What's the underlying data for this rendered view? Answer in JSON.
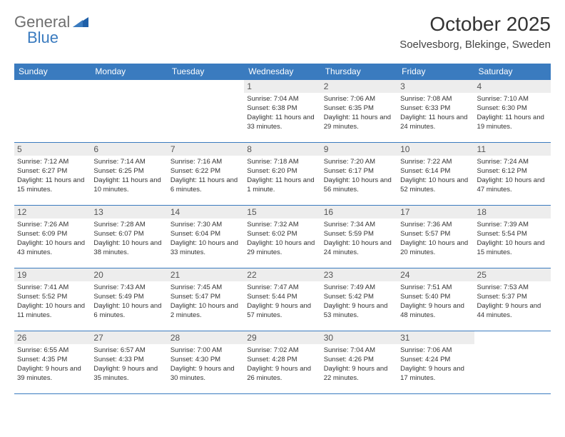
{
  "logo": {
    "part1": "General",
    "part2": "Blue"
  },
  "title": "October 2025",
  "location": "Soelvesborg, Blekinge, Sweden",
  "colors": {
    "header_bg": "#3a7bbf",
    "header_fg": "#ffffff",
    "daynum_bg": "#ededed",
    "border": "#3a7bbf",
    "logo_gray": "#6f6f6f",
    "logo_blue": "#3a7bbf"
  },
  "dayHeaders": [
    "Sunday",
    "Monday",
    "Tuesday",
    "Wednesday",
    "Thursday",
    "Friday",
    "Saturday"
  ],
  "firstWeekday": 3,
  "daysInMonth": 31,
  "days": {
    "1": {
      "sunrise": "7:04 AM",
      "sunset": "6:38 PM",
      "daylight": "11 hours and 33 minutes."
    },
    "2": {
      "sunrise": "7:06 AM",
      "sunset": "6:35 PM",
      "daylight": "11 hours and 29 minutes."
    },
    "3": {
      "sunrise": "7:08 AM",
      "sunset": "6:33 PM",
      "daylight": "11 hours and 24 minutes."
    },
    "4": {
      "sunrise": "7:10 AM",
      "sunset": "6:30 PM",
      "daylight": "11 hours and 19 minutes."
    },
    "5": {
      "sunrise": "7:12 AM",
      "sunset": "6:27 PM",
      "daylight": "11 hours and 15 minutes."
    },
    "6": {
      "sunrise": "7:14 AM",
      "sunset": "6:25 PM",
      "daylight": "11 hours and 10 minutes."
    },
    "7": {
      "sunrise": "7:16 AM",
      "sunset": "6:22 PM",
      "daylight": "11 hours and 6 minutes."
    },
    "8": {
      "sunrise": "7:18 AM",
      "sunset": "6:20 PM",
      "daylight": "11 hours and 1 minute."
    },
    "9": {
      "sunrise": "7:20 AM",
      "sunset": "6:17 PM",
      "daylight": "10 hours and 56 minutes."
    },
    "10": {
      "sunrise": "7:22 AM",
      "sunset": "6:14 PM",
      "daylight": "10 hours and 52 minutes."
    },
    "11": {
      "sunrise": "7:24 AM",
      "sunset": "6:12 PM",
      "daylight": "10 hours and 47 minutes."
    },
    "12": {
      "sunrise": "7:26 AM",
      "sunset": "6:09 PM",
      "daylight": "10 hours and 43 minutes."
    },
    "13": {
      "sunrise": "7:28 AM",
      "sunset": "6:07 PM",
      "daylight": "10 hours and 38 minutes."
    },
    "14": {
      "sunrise": "7:30 AM",
      "sunset": "6:04 PM",
      "daylight": "10 hours and 33 minutes."
    },
    "15": {
      "sunrise": "7:32 AM",
      "sunset": "6:02 PM",
      "daylight": "10 hours and 29 minutes."
    },
    "16": {
      "sunrise": "7:34 AM",
      "sunset": "5:59 PM",
      "daylight": "10 hours and 24 minutes."
    },
    "17": {
      "sunrise": "7:36 AM",
      "sunset": "5:57 PM",
      "daylight": "10 hours and 20 minutes."
    },
    "18": {
      "sunrise": "7:39 AM",
      "sunset": "5:54 PM",
      "daylight": "10 hours and 15 minutes."
    },
    "19": {
      "sunrise": "7:41 AM",
      "sunset": "5:52 PM",
      "daylight": "10 hours and 11 minutes."
    },
    "20": {
      "sunrise": "7:43 AM",
      "sunset": "5:49 PM",
      "daylight": "10 hours and 6 minutes."
    },
    "21": {
      "sunrise": "7:45 AM",
      "sunset": "5:47 PM",
      "daylight": "10 hours and 2 minutes."
    },
    "22": {
      "sunrise": "7:47 AM",
      "sunset": "5:44 PM",
      "daylight": "9 hours and 57 minutes."
    },
    "23": {
      "sunrise": "7:49 AM",
      "sunset": "5:42 PM",
      "daylight": "9 hours and 53 minutes."
    },
    "24": {
      "sunrise": "7:51 AM",
      "sunset": "5:40 PM",
      "daylight": "9 hours and 48 minutes."
    },
    "25": {
      "sunrise": "7:53 AM",
      "sunset": "5:37 PM",
      "daylight": "9 hours and 44 minutes."
    },
    "26": {
      "sunrise": "6:55 AM",
      "sunset": "4:35 PM",
      "daylight": "9 hours and 39 minutes."
    },
    "27": {
      "sunrise": "6:57 AM",
      "sunset": "4:33 PM",
      "daylight": "9 hours and 35 minutes."
    },
    "28": {
      "sunrise": "7:00 AM",
      "sunset": "4:30 PM",
      "daylight": "9 hours and 30 minutes."
    },
    "29": {
      "sunrise": "7:02 AM",
      "sunset": "4:28 PM",
      "daylight": "9 hours and 26 minutes."
    },
    "30": {
      "sunrise": "7:04 AM",
      "sunset": "4:26 PM",
      "daylight": "9 hours and 22 minutes."
    },
    "31": {
      "sunrise": "7:06 AM",
      "sunset": "4:24 PM",
      "daylight": "9 hours and 17 minutes."
    }
  },
  "labels": {
    "sunrise": "Sunrise:",
    "sunset": "Sunset:",
    "daylight": "Daylight:"
  }
}
